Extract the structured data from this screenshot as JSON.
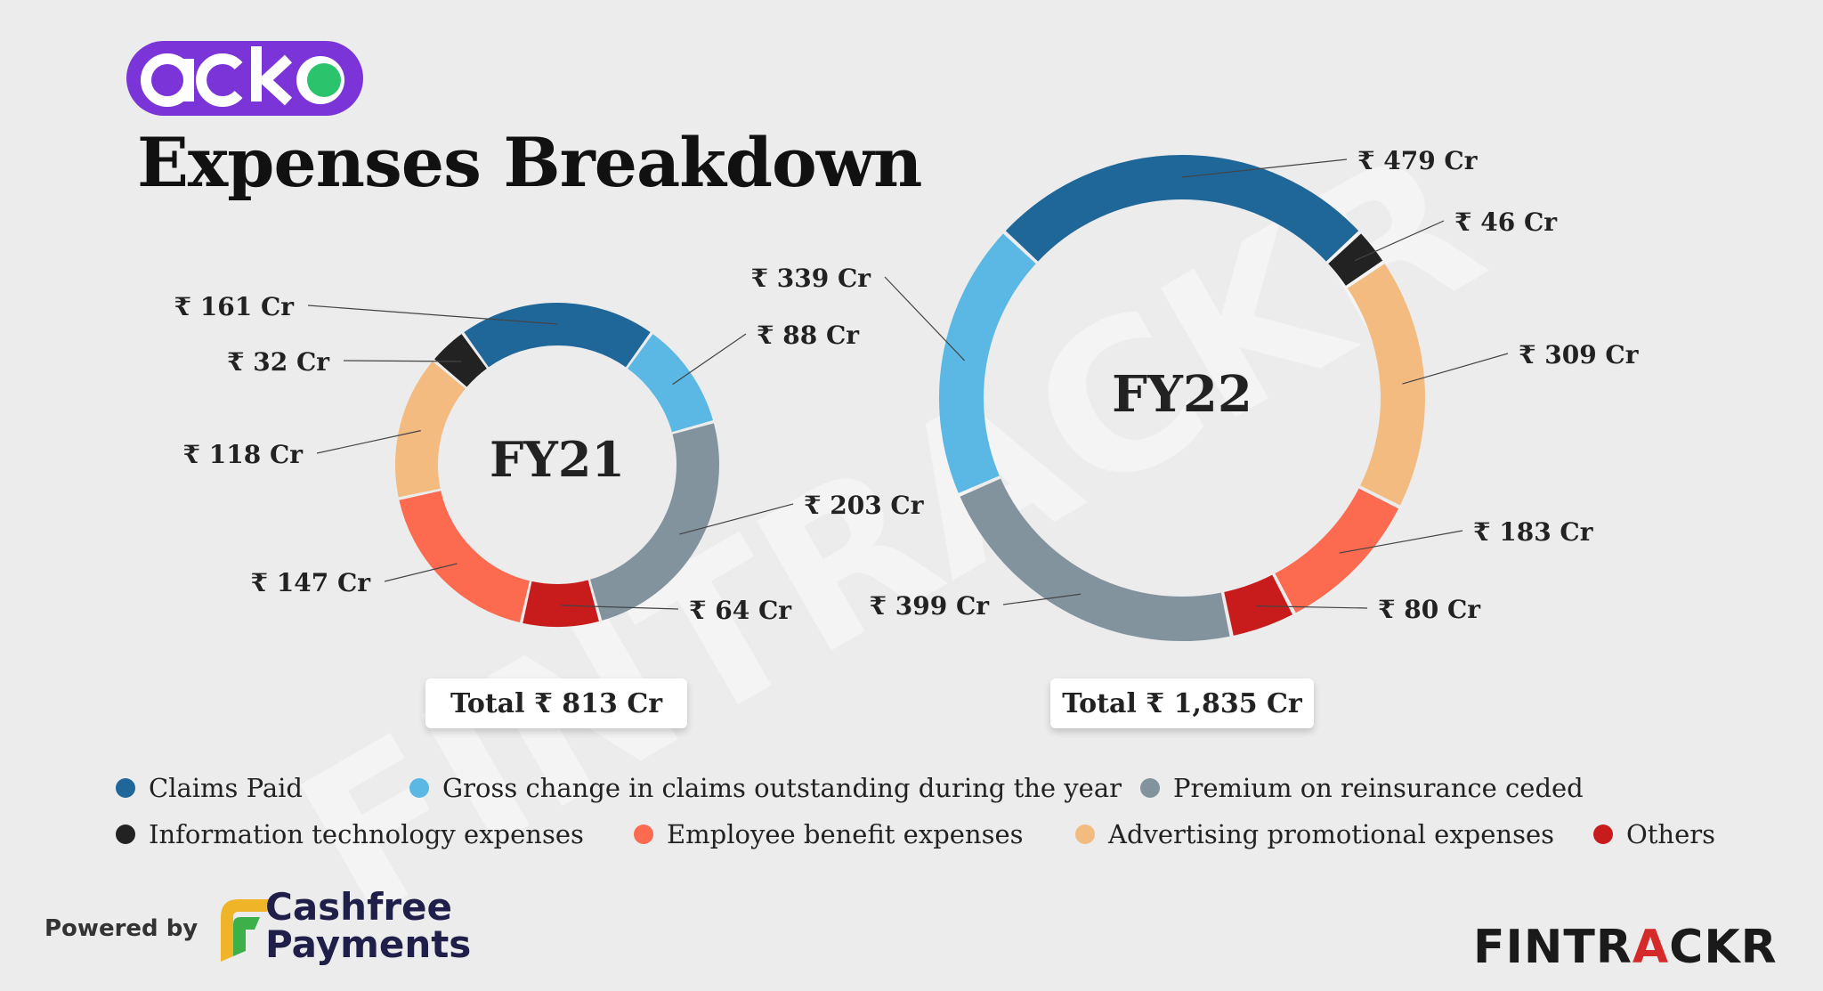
{
  "brand": {
    "logo_text": "acko"
  },
  "title": "Expenses Breakdown",
  "chart_data": [
    {
      "type": "pie",
      "variant": "donut",
      "center_label": "FY21",
      "total_label": "Total ₹ 813 Cr",
      "slices": [
        {
          "category": "Claims Paid",
          "value": 161,
          "label": "₹ 161 Cr"
        },
        {
          "category": "Gross change in claims outstanding during the year",
          "value": 88,
          "label": "₹ 88 Cr"
        },
        {
          "category": "Premium on reinsurance ceded",
          "value": 203,
          "label": "₹ 203 Cr"
        },
        {
          "category": "Others",
          "value": 64,
          "label": "₹ 64 Cr"
        },
        {
          "category": "Employee benefit expenses",
          "value": 147,
          "label": "₹ 147 Cr"
        },
        {
          "category": "Advertising promotional expenses",
          "value": 118,
          "label": "₹ 118 Cr"
        },
        {
          "category": "Information technology expenses",
          "value": 32,
          "label": "₹ 32 Cr"
        }
      ]
    },
    {
      "type": "pie",
      "variant": "donut",
      "center_label": "FY22",
      "total_label": "Total ₹ 1,835 Cr",
      "slices": [
        {
          "category": "Claims Paid",
          "value": 479,
          "label": "₹ 479 Cr"
        },
        {
          "category": "Information technology expenses",
          "value": 46,
          "label": "₹ 46 Cr"
        },
        {
          "category": "Advertising promotional expenses",
          "value": 309,
          "label": "₹ 309 Cr"
        },
        {
          "category": "Employee benefit expenses",
          "value": 183,
          "label": "₹ 183 Cr"
        },
        {
          "category": "Others",
          "value": 80,
          "label": "₹ 80 Cr"
        },
        {
          "category": "Premium on reinsurance ceded",
          "value": 399,
          "label": "₹ 399 Cr"
        },
        {
          "category": "Gross change in claims outstanding during the year",
          "value": 339,
          "label": "₹ 339 Cr"
        }
      ]
    }
  ],
  "legend": [
    {
      "label": "Claims Paid",
      "color": "#1f6699"
    },
    {
      "label": "Gross change in claims outstanding during the year",
      "color": "#5bb8e4"
    },
    {
      "label": "Premium on reinsurance ceded",
      "color": "#83939d"
    },
    {
      "label": "Information technology expenses",
      "color": "#222222"
    },
    {
      "label": "Employee benefit expenses",
      "color": "#fc6a50"
    },
    {
      "label": "Advertising promotional expenses",
      "color": "#f3bb7f"
    },
    {
      "label": "Others",
      "color": "#c81c1c"
    }
  ],
  "watermark": "FINTRACKR",
  "footer": {
    "powered_by": "Powered by",
    "partner_line1": "Cashfree",
    "partner_line2": "Payments",
    "brand_prefix": "FINTR",
    "brand_accent": "A",
    "brand_suffix": "CKR"
  }
}
